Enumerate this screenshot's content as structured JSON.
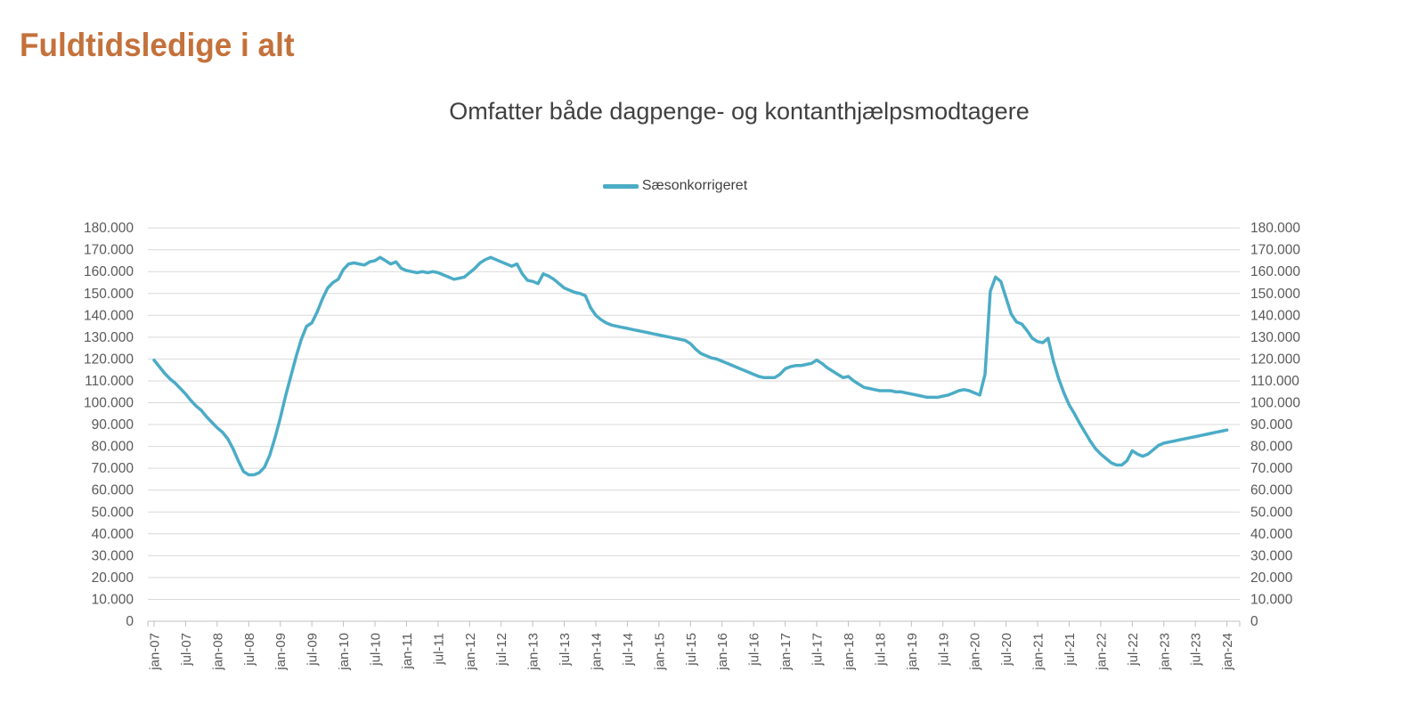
{
  "page": {
    "title": "Fuldtidsledige i alt"
  },
  "colors": {
    "title": "#C4713B",
    "subtitle": "#404040",
    "axis_labels": "#595959",
    "gridline": "#D9D9D9",
    "axis_line": "#BFBFBF",
    "series_line": "#4BACC6",
    "background": "#FFFFFF"
  },
  "chart": {
    "subtitle": "Omfatter både dagpenge- og kontanthjælpsmodtagere",
    "legend": {
      "label": "Sæsonkorrigeret"
    }
  },
  "chart_data": {
    "type": "line",
    "title": "Omfatter både dagpenge- og kontanthjælpsmodtagere",
    "xlabel": "",
    "ylabel": "",
    "ylim": [
      0,
      180000
    ],
    "y_step": 10000,
    "grid": "horizontal-light",
    "legend_position": "top-center",
    "x_frequency": "monthly",
    "x_range": [
      "jan-07",
      "jan-24"
    ],
    "x_tick_labels": [
      "jan-07",
      "jul-07",
      "jan-08",
      "jul-08",
      "jan-09",
      "jul-09",
      "jan-10",
      "jul-10",
      "jan-11",
      "jul-11",
      "jan-12",
      "jul-12",
      "jan-13",
      "jul-13",
      "jan-14",
      "jul-14",
      "jan-15",
      "jul-15",
      "jan-16",
      "jul-16",
      "jan-17",
      "jul-17",
      "jan-18",
      "jul-18",
      "jan-19",
      "jul-19",
      "jan-20",
      "jul-20",
      "jan-21",
      "jul-21",
      "jan-22",
      "jul-22",
      "jan-23",
      "jul-23",
      "jan-24"
    ],
    "y_tick_labels": [
      "0",
      "10.000",
      "20.000",
      "30.000",
      "40.000",
      "50.000",
      "60.000",
      "70.000",
      "80.000",
      "90.000",
      "100.000",
      "110.000",
      "120.000",
      "130.000",
      "140.000",
      "150.000",
      "160.000",
      "170.000",
      "180.000"
    ],
    "series": [
      {
        "name": "Sæsonkorrigeret",
        "color": "#4BACC6",
        "line_width": 3.5,
        "values_by_year": {
          "2007": [
            119500,
            116500,
            113500,
            111000,
            109000,
            106500,
            104000,
            101000,
            98500,
            96500,
            93500,
            91000
          ],
          "2008": [
            88500,
            86500,
            83500,
            79000,
            73500,
            68500,
            67000,
            67000,
            68000,
            70500,
            76000,
            84000
          ],
          "2009": [
            93000,
            103000,
            112000,
            121000,
            129000,
            135000,
            136500,
            141500,
            147500,
            152500,
            155000,
            156500
          ],
          "2010": [
            161000,
            163500,
            164000,
            163500,
            163000,
            164500,
            165000,
            166500,
            165000,
            163500,
            164500,
            161500
          ],
          "2011": [
            160500,
            160000,
            159500,
            160000,
            159500,
            160000,
            159500,
            158500,
            157500,
            156500,
            157000,
            157500
          ],
          "2012": [
            159500,
            161500,
            164000,
            165500,
            166500,
            165500,
            164500,
            163500,
            162500,
            163500,
            159000,
            156000
          ],
          "2013": [
            155500,
            154500,
            159000,
            158000,
            156500,
            154500,
            152500,
            151500,
            150500,
            150000,
            149000,
            143500
          ],
          "2014": [
            140000,
            138000,
            136500,
            135500,
            135000,
            134500,
            134000,
            133500,
            133000,
            132500,
            132000,
            131500
          ],
          "2015": [
            131000,
            130500,
            130000,
            129500,
            129000,
            128500,
            127000,
            124500,
            122500,
            121500,
            120500,
            120000
          ],
          "2016": [
            119000,
            118000,
            117000,
            116000,
            115000,
            114000,
            113000,
            112000,
            111500,
            111500,
            111500,
            113000
          ],
          "2017": [
            115500,
            116500,
            117000,
            117000,
            117500,
            118000,
            119500,
            118000,
            116000,
            114500,
            113000,
            111500
          ],
          "2018": [
            112000,
            110000,
            108500,
            107000,
            106500,
            106000,
            105500,
            105500,
            105500,
            105000,
            105000,
            104500
          ],
          "2019": [
            104000,
            103500,
            103000,
            102500,
            102500,
            102500,
            103000,
            103500,
            104500,
            105500,
            106000,
            105500
          ],
          "2020": [
            104500,
            103500,
            113000,
            151000,
            157500,
            155500,
            148000,
            140500,
            137000,
            136000,
            133000,
            129500
          ],
          "2021": [
            128000,
            127500,
            129500,
            119000,
            111000,
            104500,
            99000,
            95000,
            90500,
            86500,
            82500,
            79000
          ],
          "2022": [
            76500,
            74500,
            72500,
            71500,
            71500,
            73500,
            78000,
            76500,
            75500,
            76500,
            78500,
            80500
          ],
          "2023": [
            81500,
            82000,
            82500,
            83000,
            83500,
            84000,
            84500,
            85000,
            85500,
            86000,
            86500,
            87000
          ],
          "2024": [
            87500
          ]
        }
      }
    ]
  }
}
